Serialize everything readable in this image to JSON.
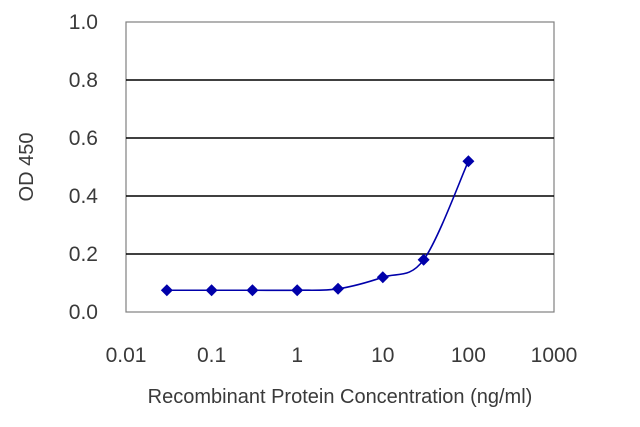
{
  "chart_data": {
    "type": "line",
    "title": "",
    "xlabel": "Recombinant Protein Concentration (ng/ml)",
    "ylabel": "OD 450",
    "x_scale": "log",
    "xlim": [
      0.01,
      1000
    ],
    "ylim": [
      0,
      1.0
    ],
    "x_ticks": [
      0.01,
      0.1,
      1,
      10,
      100,
      1000
    ],
    "x_tick_labels": [
      "0.01",
      "0.1",
      "1",
      "10",
      "100",
      "1000"
    ],
    "y_ticks": [
      0,
      0.2,
      0.4,
      0.6,
      0.8,
      1.0
    ],
    "y_tick_labels": [
      "0.0",
      "0.2",
      "0.4",
      "0.6",
      "0.8",
      "1.0"
    ],
    "grid": "horizontal",
    "series": [
      {
        "x": [
          0.03,
          0.1,
          0.3,
          1,
          3,
          10,
          30,
          100
        ],
        "y": [
          0.075,
          0.075,
          0.075,
          0.075,
          0.08,
          0.12,
          0.18,
          0.52
        ],
        "color": "#0000aa",
        "marker": "diamond"
      }
    ]
  }
}
